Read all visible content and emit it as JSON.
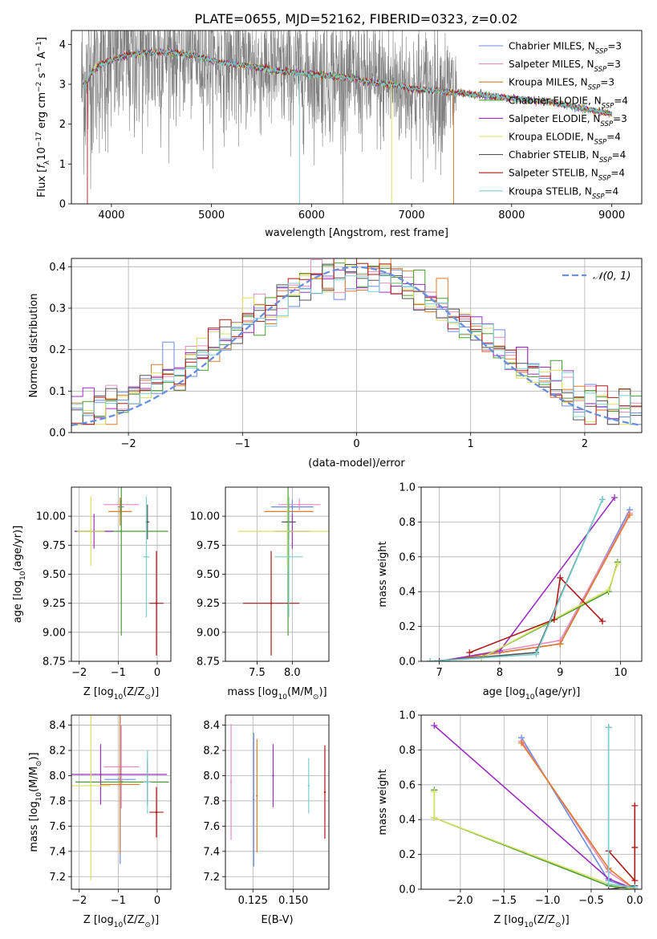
{
  "title": "PLATE=0655, MJD=52162, FIBERID=0323, z=0.02",
  "colors": {
    "Chabrier MILES": "#6a8ee0",
    "Salpeter MILES": "#e88cc0",
    "Kroupa MILES": "#e07a28",
    "Chabrier ELODIE": "#4a9e32",
    "Salpeter ELODIE": "#9b30c0",
    "Kroupa ELODIE": "#d8e060",
    "Chabrier STELIB": "#555555",
    "Salpeter STELIB": "#b01818",
    "Kroupa STELIB": "#78d0d0",
    "data": "#808080",
    "gauss": "#6a8ee0"
  },
  "chart_data": [
    {
      "type": "line",
      "id": "spectrum",
      "xlabel": "wavelength [Angstrom, rest frame]",
      "ylabel_parts": [
        "Flux [",
        "f",
        "λ",
        "10",
        "−17",
        " erg cm",
        "−2",
        " s",
        "−1",
        " A",
        "−1",
        "]"
      ],
      "xlim": [
        3600,
        9300
      ],
      "ylim": [
        0,
        4.35
      ],
      "xticks": [
        4000,
        5000,
        6000,
        7000,
        8000,
        9000
      ],
      "yticks": [
        0,
        1,
        2,
        3,
        4
      ],
      "legend_location": "upper right",
      "series": [
        {
          "name": "Chabrier MILES, N_SSP=3",
          "label_main": "Chabrier MILES, N",
          "label_sub": "SSP",
          "label_tail": "=3"
        },
        {
          "name": "Salpeter MILES, N_SSP=3",
          "label_main": "Salpeter MILES, N",
          "label_sub": "SSP",
          "label_tail": "=3"
        },
        {
          "name": "Kroupa MILES, N_SSP=3",
          "label_main": "Kroupa MILES, N",
          "label_sub": "SSP",
          "label_tail": "=3"
        },
        {
          "name": "Chabrier ELODIE, N_SSP=4",
          "label_main": "Chabrier ELODIE, N",
          "label_sub": "SSP",
          "label_tail": "=4"
        },
        {
          "name": "Salpeter ELODIE, N_SSP=3",
          "label_main": "Salpeter ELODIE, N",
          "label_sub": "SSP",
          "label_tail": "=3"
        },
        {
          "name": "Kroupa ELODIE, N_SSP=4",
          "label_main": "Kroupa ELODIE, N",
          "label_sub": "SSP",
          "label_tail": "=4"
        },
        {
          "name": "Chabrier STELIB, N_SSP=4",
          "label_main": "Chabrier STELIB, N",
          "label_sub": "SSP",
          "label_tail": "=4"
        },
        {
          "name": "Salpeter STELIB, N_SSP=4",
          "label_main": "Salpeter STELIB, N",
          "label_sub": "SSP",
          "label_tail": "=4"
        },
        {
          "name": "Kroupa STELIB, N_SSP=4",
          "label_main": "Kroupa STELIB, N",
          "label_sub": "SSP",
          "label_tail": "=4"
        }
      ],
      "continuum": {
        "x": [
          3750,
          3800,
          3900,
          4000,
          4100,
          4200,
          4400,
          4600,
          4800,
          5000,
          5200,
          5400,
          5600,
          5800,
          6000,
          6200,
          6400,
          6600,
          6800,
          7000,
          7200,
          7400,
          7600,
          7800,
          8000,
          8200,
          8400,
          8600,
          8800,
          9000
        ],
        "y": [
          3.0,
          3.3,
          3.5,
          3.6,
          3.7,
          3.75,
          3.8,
          3.8,
          3.75,
          3.6,
          3.5,
          3.45,
          3.35,
          3.3,
          3.25,
          3.2,
          3.15,
          3.05,
          3.0,
          2.9,
          2.85,
          2.8,
          2.75,
          2.7,
          2.65,
          2.6,
          2.55,
          2.45,
          2.35,
          2.25
        ]
      },
      "noisy_data_range": [
        3700,
        7450
      ]
    },
    {
      "type": "bar",
      "id": "residuals",
      "xlabel": "(data-model)/error",
      "ylabel": "Normed distribution",
      "xlim": [
        -2.5,
        2.5
      ],
      "ylim": [
        0,
        0.42
      ],
      "xticks": [
        -2,
        -1,
        0,
        1,
        2
      ],
      "yticks": [
        0.0,
        0.1,
        0.2,
        0.3,
        0.4
      ],
      "legend": "𝒩(0, 1)",
      "bin_width": 0.1,
      "gauss_curve": "standard normal, mean 0, sigma 1"
    },
    {
      "type": "scatter",
      "id": "age_vs_Z",
      "xlabel_parts": [
        "Z [log",
        "10",
        "(Z/Z",
        "⊙",
        ")]"
      ],
      "ylabel_parts": [
        "age  [log",
        "10",
        "(age/yr)]"
      ],
      "xlim": [
        -2.2,
        0.35
      ],
      "ylim": [
        8.75,
        10.25
      ],
      "xticks": [
        -2,
        -1,
        0
      ],
      "yticks": [
        8.75,
        9.0,
        9.25,
        9.5,
        9.75,
        10.0
      ],
      "points": [
        {
          "model": "Chabrier MILES",
          "x": -0.93,
          "xerr": 0.08,
          "y": 10.08,
          "yerr": 0.06
        },
        {
          "model": "Salpeter MILES",
          "x": -0.92,
          "xerr": 0.45,
          "y": 10.1,
          "yerr": 0.05
        },
        {
          "model": "Kroupa MILES",
          "x": -0.95,
          "xerr": 0.3,
          "y": 10.04,
          "yerr": 0.12
        },
        {
          "model": "Chabrier ELODIE",
          "x": -0.92,
          "xerr": 1.2,
          "y": 9.87,
          "yerr": 0.9
        },
        {
          "model": "Salpeter ELODIE",
          "x": -1.62,
          "xerr": 0.5,
          "y": 9.87,
          "yerr": 0.15
        },
        {
          "model": "Kroupa ELODIE",
          "x": -1.7,
          "xerr": 0.35,
          "y": 9.87,
          "yerr": 0.3
        },
        {
          "model": "Chabrier STELIB",
          "x": -0.25,
          "xerr": 0.05,
          "y": 9.95,
          "yerr": 0.15
        },
        {
          "model": "Salpeter STELIB",
          "x": -0.02,
          "xerr": 0.18,
          "y": 9.25,
          "yerr": 0.45
        },
        {
          "model": "Kroupa STELIB",
          "x": -0.28,
          "xerr": 0.08,
          "y": 9.65,
          "yerr": 0.52
        }
      ]
    },
    {
      "type": "scatter",
      "id": "age_vs_mass",
      "xlabel_parts": [
        "mass [log",
        "10",
        "(M/M",
        "⊙",
        ")]"
      ],
      "xlim": [
        7.05,
        8.52
      ],
      "ylim": [
        8.75,
        10.25
      ],
      "xticks": [
        7.5,
        8.0
      ],
      "yticks": [
        8.75,
        9.0,
        9.25,
        9.5,
        9.75,
        10.0
      ],
      "points": [
        {
          "model": "Chabrier MILES",
          "x": 8.0,
          "xerr": 0.3,
          "y": 10.08,
          "yerr": 0.06
        },
        {
          "model": "Salpeter MILES",
          "x": 8.1,
          "xerr": 0.3,
          "y": 10.1,
          "yerr": 0.05
        },
        {
          "model": "Kroupa MILES",
          "x": 7.95,
          "xerr": 0.35,
          "y": 10.04,
          "yerr": 0.12
        },
        {
          "model": "Chabrier ELODIE",
          "x": 7.94,
          "xerr": 0.05,
          "y": 9.87,
          "yerr": 0.9
        },
        {
          "model": "Salpeter ELODIE",
          "x": 8.0,
          "xerr": 0.25,
          "y": 9.87,
          "yerr": 0.15
        },
        {
          "model": "Kroupa ELODIE",
          "x": 7.93,
          "xerr": 0.7,
          "y": 9.87,
          "yerr": 0.3
        },
        {
          "model": "Chabrier STELIB",
          "x": 7.95,
          "xerr": 0.1,
          "y": 9.95,
          "yerr": 0.15
        },
        {
          "model": "Salpeter STELIB",
          "x": 7.7,
          "xerr": 0.4,
          "y": 9.25,
          "yerr": 0.45
        },
        {
          "model": "Kroupa STELIB",
          "x": 7.95,
          "xerr": 0.2,
          "y": 9.65,
          "yerr": 0.52
        }
      ]
    },
    {
      "type": "line",
      "id": "massweight_vs_age",
      "xlabel_parts": [
        "age  [log",
        "10",
        "(age/yr)]"
      ],
      "ylabel": "mass weight",
      "xlim": [
        6.7,
        10.35
      ],
      "ylim": [
        0,
        1.0
      ],
      "xticks": [
        7,
        8,
        9,
        10
      ],
      "yticks": [
        0.0,
        0.2,
        0.4,
        0.6,
        0.8,
        1.0
      ],
      "series": [
        {
          "model": "Chabrier MILES",
          "x": [
            7.0,
            9.0,
            10.15
          ],
          "y": [
            0.0,
            0.1,
            0.87
          ]
        },
        {
          "model": "Salpeter MILES",
          "x": [
            7.0,
            9.0,
            10.15
          ],
          "y": [
            0.0,
            0.12,
            0.85
          ]
        },
        {
          "model": "Kroupa MILES",
          "x": [
            7.0,
            9.0,
            10.15
          ],
          "y": [
            0.0,
            0.1,
            0.84
          ]
        },
        {
          "model": "Chabrier ELODIE",
          "x": [
            6.85,
            7.7,
            9.8,
            9.95
          ],
          "y": [
            0.0,
            0.02,
            0.4,
            0.57
          ]
        },
        {
          "model": "Salpeter ELODIE",
          "x": [
            7.0,
            8.0,
            9.9
          ],
          "y": [
            0.0,
            0.06,
            0.94
          ]
        },
        {
          "model": "Kroupa ELODIE",
          "x": [
            6.85,
            7.7,
            9.8,
            9.95
          ],
          "y": [
            0.0,
            0.02,
            0.41,
            0.56
          ]
        },
        {
          "model": "Chabrier STELIB",
          "x": [
            6.85,
            8.6,
            9.7
          ],
          "y": [
            0.0,
            0.05,
            0.93
          ]
        },
        {
          "model": "Salpeter STELIB",
          "x": [
            7.5,
            8.9,
            9.0,
            9.7
          ],
          "y": [
            0.05,
            0.24,
            0.48,
            0.23
          ]
        },
        {
          "model": "Kroupa STELIB",
          "x": [
            6.85,
            8.6,
            9.7
          ],
          "y": [
            0.0,
            0.04,
            0.93
          ]
        }
      ]
    },
    {
      "type": "scatter",
      "id": "mass_vs_Z",
      "xlabel_parts": [
        "Z [log",
        "10",
        "(Z/Z",
        "⊙",
        ")]"
      ],
      "ylabel_parts": [
        "mass [log",
        "10",
        "(M/M",
        "⊙",
        ")]"
      ],
      "xlim": [
        -2.2,
        0.35
      ],
      "ylim": [
        7.1,
        8.48
      ],
      "xticks": [
        -2,
        -1,
        0
      ],
      "yticks": [
        7.2,
        7.4,
        7.6,
        7.8,
        8.0,
        8.2,
        8.4
      ],
      "points": [
        {
          "model": "Chabrier MILES",
          "x": -0.95,
          "xerr": 0.4,
          "y": 7.97,
          "yerr": 0.67
        },
        {
          "model": "Salpeter MILES",
          "x": -0.92,
          "xerr": 0.45,
          "y": 8.07,
          "yerr": 0.33
        },
        {
          "model": "Kroupa MILES",
          "x": -0.95,
          "xerr": 0.5,
          "y": 7.93,
          "yerr": 0.55
        },
        {
          "model": "Chabrier ELODIE",
          "x": -0.9,
          "xerr": 1.2,
          "y": 7.95,
          "yerr": 0.0
        },
        {
          "model": "Salpeter ELODIE",
          "x": -1.45,
          "xerr": 1.7,
          "y": 8.01,
          "yerr": 0.24
        },
        {
          "model": "Kroupa ELODIE",
          "x": -1.7,
          "xerr": 0.5,
          "y": 7.92,
          "yerr": 0.75
        },
        {
          "model": "Chabrier STELIB",
          "x": -0.25,
          "xerr": 0.1,
          "y": 7.95,
          "yerr": 0.18
        },
        {
          "model": "Salpeter STELIB",
          "x": -0.02,
          "xerr": 0.18,
          "y": 7.71,
          "yerr": 0.2
        },
        {
          "model": "Kroupa STELIB",
          "x": -0.25,
          "xerr": 0.1,
          "y": 7.95,
          "yerr": 0.25
        }
      ]
    },
    {
      "type": "scatter",
      "id": "mass_vs_EBV",
      "xlabel": "E(B-V)",
      "xlim": [
        0.108,
        0.172
      ],
      "ylim": [
        7.1,
        8.48
      ],
      "xticks": [
        0.125,
        0.15
      ],
      "yticks": [
        7.2,
        7.4,
        7.6,
        7.8,
        8.0,
        8.2,
        8.4
      ],
      "points": [
        {
          "model": "Salpeter MILES",
          "x": 0.1115,
          "y": 7.95,
          "yerr": 0.46
        },
        {
          "model": "Chabrier MILES",
          "x": 0.1255,
          "y": 7.81,
          "yerr": 0.53
        },
        {
          "model": "Kroupa MILES",
          "x": 0.1275,
          "y": 7.84,
          "yerr": 0.45
        },
        {
          "model": "Salpeter ELODIE",
          "x": 0.1375,
          "y": 8.0,
          "yerr": 0.25
        },
        {
          "model": "Kroupa STELIB",
          "x": 0.1595,
          "y": 7.92,
          "yerr": 0.22
        },
        {
          "model": "Salpeter STELIB",
          "x": 0.1695,
          "y": 7.87,
          "yerr": 0.37
        }
      ]
    },
    {
      "type": "line",
      "id": "massweight_vs_Z",
      "xlabel_parts": [
        "Z [log",
        "10",
        "(Z/Z",
        "⊙",
        ")]"
      ],
      "ylabel": "mass weight",
      "xlim": [
        -2.45,
        0.08
      ],
      "ylim": [
        0,
        1.0
      ],
      "xticks": [
        -2.0,
        -1.5,
        -1.0,
        -0.5,
        0.0
      ],
      "yticks": [
        0.0,
        0.2,
        0.4,
        0.6,
        0.8,
        1.0
      ],
      "series": [
        {
          "model": "Chabrier MILES",
          "x": [
            -1.3,
            -0.3,
            0.0
          ],
          "y": [
            0.87,
            0.05,
            0.0
          ]
        },
        {
          "model": "Salpeter MILES",
          "x": [
            -1.3,
            -0.3,
            0.0
          ],
          "y": [
            0.85,
            0.1,
            0.0
          ]
        },
        {
          "model": "Kroupa MILES",
          "x": [
            -1.3,
            -0.3,
            0.0
          ],
          "y": [
            0.84,
            0.12,
            0.0
          ]
        },
        {
          "model": "Chabrier ELODIE",
          "x": [
            -2.3,
            -2.3,
            -0.3,
            0.0
          ],
          "y": [
            0.57,
            0.41,
            0.02,
            0.0
          ]
        },
        {
          "model": "Salpeter ELODIE",
          "x": [
            -2.3,
            -0.3,
            0.0
          ],
          "y": [
            0.94,
            0.06,
            0.0
          ]
        },
        {
          "model": "Kroupa ELODIE",
          "x": [
            -2.3,
            -2.3,
            -0.3,
            0.0
          ],
          "y": [
            0.56,
            0.41,
            0.03,
            0.0
          ]
        },
        {
          "model": "Chabrier STELIB",
          "x": [
            -0.3,
            -0.3,
            0.0
          ],
          "y": [
            0.93,
            0.0,
            0.02
          ]
        },
        {
          "model": "Salpeter STELIB",
          "x": [
            -0.3,
            0.0,
            0.0,
            0.0
          ],
          "y": [
            0.22,
            0.05,
            0.24,
            0.48
          ]
        },
        {
          "model": "Kroupa STELIB",
          "x": [
            -0.3,
            -0.3,
            0.0
          ],
          "y": [
            0.93,
            0.03,
            0.01
          ]
        }
      ]
    }
  ]
}
